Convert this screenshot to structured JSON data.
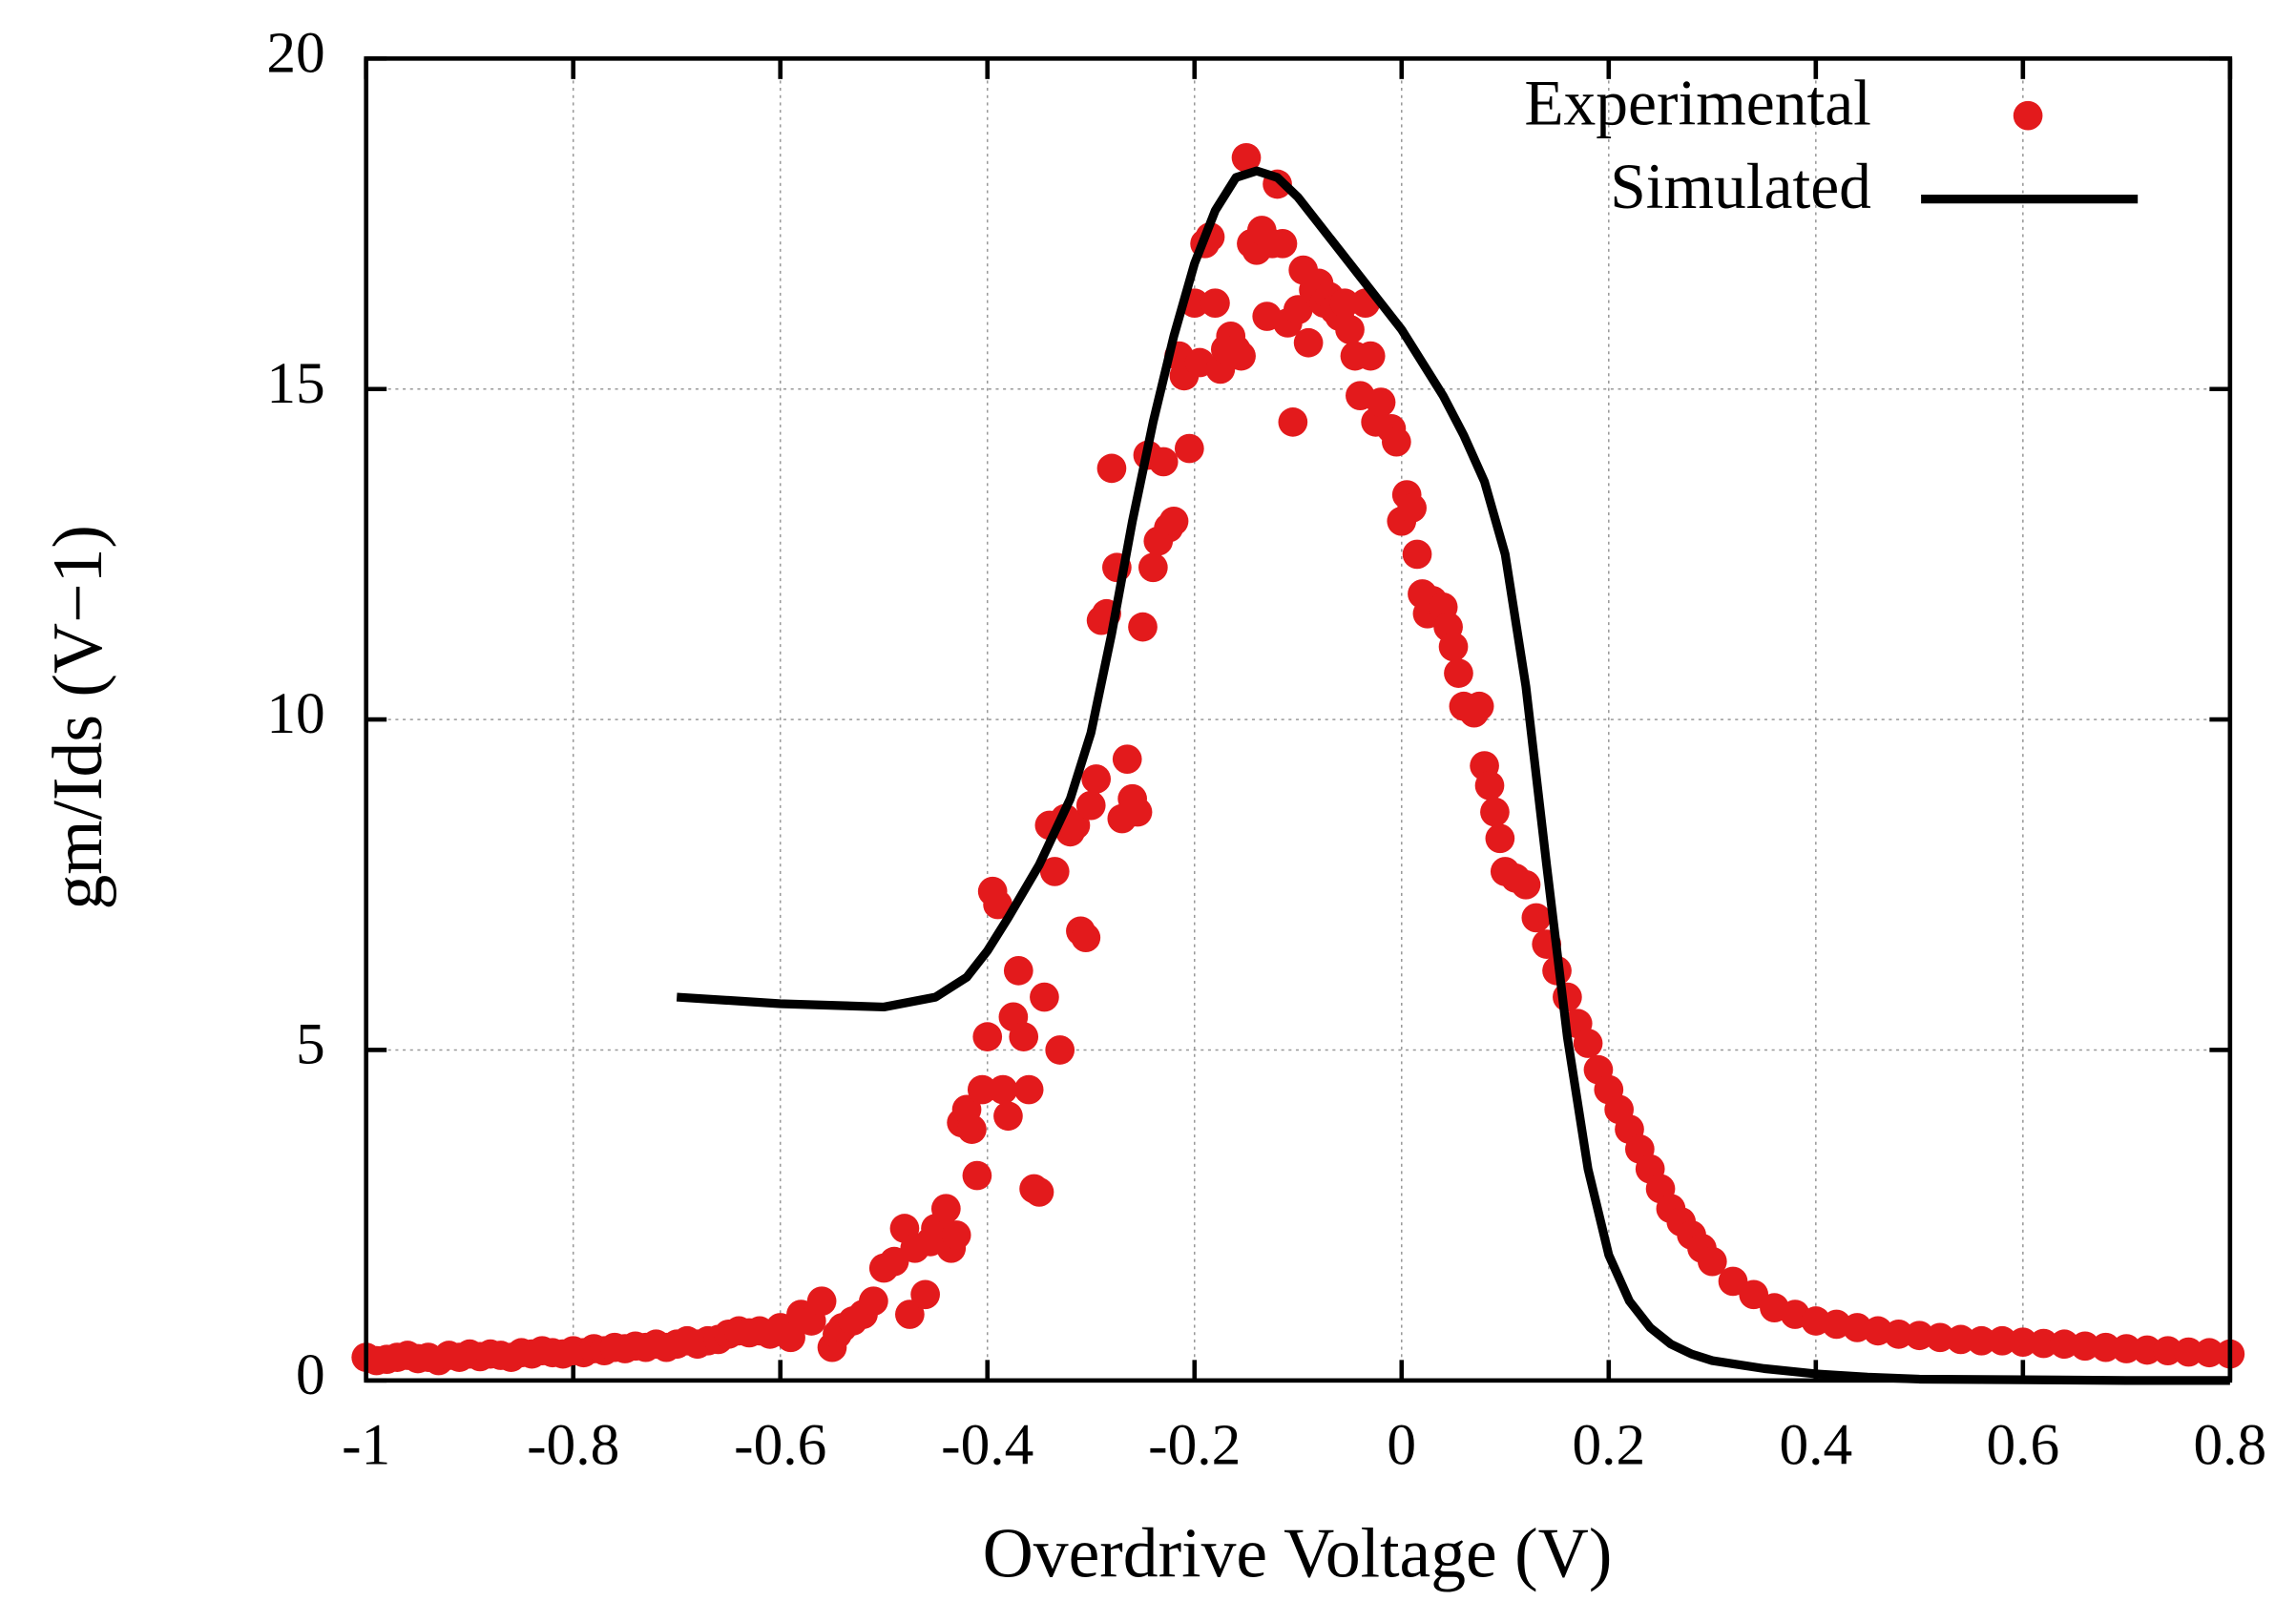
{
  "chart_data": {
    "type": "scatter",
    "xlabel": "Overdrive Voltage (V)",
    "ylabel": "gm/Ids (V−1)",
    "xlim": [
      -1,
      0.8
    ],
    "xticks": [
      -1,
      -0.8,
      -0.6,
      -0.4,
      -0.2,
      0,
      0.2,
      0.4,
      0.6,
      0.8
    ],
    "ylim": [
      0,
      20
    ],
    "yticks": [
      0,
      5,
      10,
      15,
      20
    ],
    "grid": true,
    "legend": "upper right",
    "series": [
      {
        "name": "Experimental",
        "type": "scatter",
        "color": "#e31a1c",
        "x": [
          -1.0,
          -0.99,
          -0.98,
          -0.97,
          -0.96,
          -0.95,
          -0.94,
          -0.93,
          -0.92,
          -0.91,
          -0.9,
          -0.89,
          -0.88,
          -0.87,
          -0.86,
          -0.85,
          -0.84,
          -0.83,
          -0.82,
          -0.81,
          -0.8,
          -0.79,
          -0.78,
          -0.77,
          -0.76,
          -0.75,
          -0.74,
          -0.73,
          -0.72,
          -0.71,
          -0.7,
          -0.69,
          -0.68,
          -0.67,
          -0.66,
          -0.65,
          -0.64,
          -0.63,
          -0.62,
          -0.61,
          -0.6,
          -0.59,
          -0.58,
          -0.57,
          -0.56,
          -0.55,
          -0.545,
          -0.54,
          -0.53,
          -0.52,
          -0.51,
          -0.5,
          -0.49,
          -0.48,
          -0.475,
          -0.47,
          -0.46,
          -0.455,
          -0.45,
          -0.44,
          -0.435,
          -0.43,
          -0.425,
          -0.42,
          -0.415,
          -0.41,
          -0.405,
          -0.4,
          -0.395,
          -0.39,
          -0.385,
          -0.38,
          -0.375,
          -0.37,
          -0.365,
          -0.36,
          -0.355,
          -0.35,
          -0.345,
          -0.34,
          -0.335,
          -0.33,
          -0.325,
          -0.32,
          -0.315,
          -0.31,
          -0.305,
          -0.3,
          -0.295,
          -0.29,
          -0.285,
          -0.28,
          -0.275,
          -0.27,
          -0.265,
          -0.26,
          -0.255,
          -0.25,
          -0.245,
          -0.24,
          -0.235,
          -0.23,
          -0.225,
          -0.22,
          -0.215,
          -0.21,
          -0.205,
          -0.2,
          -0.195,
          -0.19,
          -0.185,
          -0.18,
          -0.175,
          -0.17,
          -0.165,
          -0.16,
          -0.155,
          -0.15,
          -0.145,
          -0.14,
          -0.135,
          -0.13,
          -0.125,
          -0.12,
          -0.115,
          -0.11,
          -0.105,
          -0.1,
          -0.095,
          -0.09,
          -0.085,
          -0.08,
          -0.075,
          -0.07,
          -0.065,
          -0.06,
          -0.055,
          -0.05,
          -0.045,
          -0.04,
          -0.035,
          -0.03,
          -0.025,
          -0.02,
          -0.01,
          -0.005,
          0.0,
          0.005,
          0.01,
          0.015,
          0.02,
          0.025,
          0.03,
          0.04,
          0.045,
          0.05,
          0.055,
          0.06,
          0.07,
          0.075,
          0.08,
          0.085,
          0.09,
          0.095,
          0.1,
          0.11,
          0.12,
          0.13,
          0.14,
          0.15,
          0.16,
          0.17,
          0.18,
          0.19,
          0.2,
          0.21,
          0.22,
          0.23,
          0.24,
          0.25,
          0.26,
          0.27,
          0.28,
          0.29,
          0.3,
          0.32,
          0.34,
          0.36,
          0.38,
          0.4,
          0.42,
          0.44,
          0.46,
          0.48,
          0.5,
          0.52,
          0.54,
          0.56,
          0.58,
          0.6,
          0.62,
          0.64,
          0.66,
          0.68,
          0.7,
          0.72,
          0.74,
          0.76,
          0.78,
          0.8
        ],
        "values": [
          0.35,
          0.3,
          0.32,
          0.35,
          0.38,
          0.33,
          0.35,
          0.3,
          0.38,
          0.35,
          0.4,
          0.36,
          0.4,
          0.38,
          0.35,
          0.42,
          0.4,
          0.45,
          0.42,
          0.4,
          0.45,
          0.42,
          0.48,
          0.45,
          0.5,
          0.48,
          0.52,
          0.5,
          0.55,
          0.5,
          0.55,
          0.6,
          0.55,
          0.6,
          0.62,
          0.7,
          0.75,
          0.72,
          0.75,
          0.7,
          0.8,
          0.65,
          1.0,
          0.9,
          1.2,
          0.5,
          0.7,
          0.8,
          0.9,
          1.0,
          1.2,
          1.7,
          1.8,
          2.3,
          1.0,
          2.0,
          1.3,
          2.1,
          2.3,
          2.6,
          2.0,
          2.2,
          3.9,
          4.1,
          3.8,
          3.1,
          4.4,
          5.2,
          7.4,
          7.2,
          4.4,
          4.0,
          5.5,
          6.2,
          5.2,
          4.4,
          2.9,
          2.85,
          5.8,
          8.4,
          7.7,
          5.0,
          8.5,
          8.3,
          8.4,
          6.8,
          6.7,
          8.7,
          9.1,
          11.5,
          11.6,
          13.8,
          12.3,
          8.5,
          9.4,
          8.8,
          8.6,
          11.4,
          14.0,
          12.3,
          12.7,
          13.9,
          12.9,
          13.0,
          15.5,
          15.2,
          14.1,
          16.3,
          15.4,
          17.2,
          17.3,
          16.3,
          15.3,
          15.6,
          15.8,
          15.6,
          15.5,
          18.5,
          17.2,
          17.1,
          17.4,
          16.1,
          17.2,
          18.1,
          17.2,
          16.0,
          14.5,
          16.2,
          16.8,
          15.7,
          16.5,
          16.6,
          16.3,
          16.4,
          16.2,
          16.1,
          16.3,
          15.9,
          15.5,
          14.9,
          16.3,
          15.5,
          14.5,
          14.8,
          14.4,
          14.2,
          13.0,
          13.4,
          13.2,
          12.5,
          11.9,
          11.6,
          11.8,
          11.7,
          11.4,
          11.1,
          10.7,
          10.2,
          10.1,
          10.2,
          9.3,
          9.0,
          8.6,
          8.2,
          7.7,
          7.6,
          7.5,
          7.0,
          6.6,
          6.2,
          5.8,
          5.4,
          5.1,
          4.7,
          4.4,
          4.1,
          3.8,
          3.5,
          3.2,
          2.9,
          2.6,
          2.4,
          2.2,
          2.0,
          1.8,
          1.5,
          1.3,
          1.1,
          1.0,
          0.9,
          0.85,
          0.8,
          0.75,
          0.7,
          0.68,
          0.65,
          0.62,
          0.6,
          0.6,
          0.58,
          0.56,
          0.55,
          0.52,
          0.5,
          0.48,
          0.46,
          0.45,
          0.43,
          0.42,
          0.4
        ]
      },
      {
        "name": "Simulated",
        "type": "line",
        "color": "#000000",
        "x": [
          -0.7,
          -0.6,
          -0.5,
          -0.45,
          -0.42,
          -0.4,
          -0.38,
          -0.35,
          -0.32,
          -0.3,
          -0.28,
          -0.26,
          -0.24,
          -0.22,
          -0.2,
          -0.18,
          -0.16,
          -0.14,
          -0.12,
          -0.1,
          -0.08,
          -0.06,
          -0.04,
          -0.02,
          0,
          0.02,
          0.04,
          0.06,
          0.08,
          0.1,
          0.12,
          0.14,
          0.16,
          0.18,
          0.2,
          0.22,
          0.24,
          0.26,
          0.28,
          0.3,
          0.35,
          0.4,
          0.45,
          0.5,
          0.6,
          0.7,
          0.8
        ],
        "values": [
          5.8,
          5.7,
          5.65,
          5.8,
          6.1,
          6.5,
          7.0,
          7.8,
          8.8,
          9.8,
          11.3,
          13.0,
          14.5,
          15.8,
          16.9,
          17.7,
          18.2,
          18.3,
          18.2,
          17.9,
          17.5,
          17.1,
          16.7,
          16.3,
          15.9,
          15.4,
          14.9,
          14.3,
          13.6,
          12.5,
          10.5,
          7.8,
          5.2,
          3.2,
          1.9,
          1.2,
          0.8,
          0.55,
          0.4,
          0.3,
          0.18,
          0.1,
          0.05,
          0.02,
          0.01,
          0.0,
          0.0
        ]
      }
    ]
  }
}
